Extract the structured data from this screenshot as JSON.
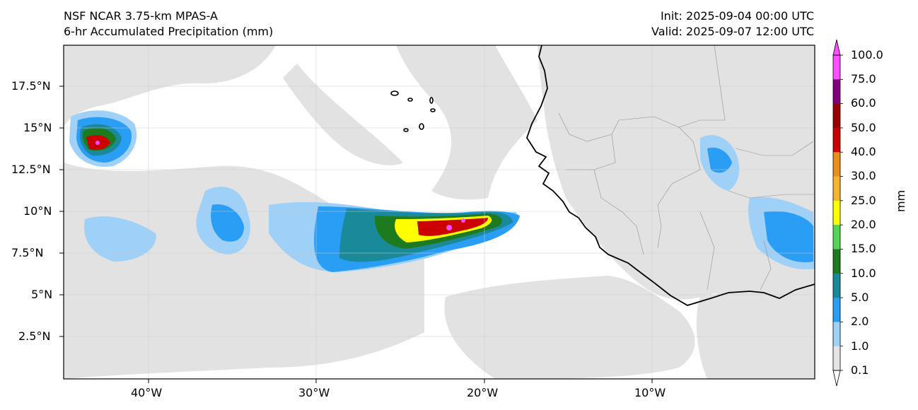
{
  "header": {
    "title_line1": "NSF NCAR 3.75-km MPAS-A",
    "title_line2": "6-hr Accumulated Precipitation (mm)",
    "init": "Init: 2025-09-04 00:00 UTC",
    "valid": "Valid: 2025-09-07 12:00 UTC"
  },
  "axes": {
    "lat_ticks": [
      "17.5°N",
      "15°N",
      "12.5°N",
      "10°N",
      "7.5°N",
      "5°N",
      "2.5°N"
    ],
    "lon_ticks": [
      "40°W",
      "30°W",
      "20°W",
      "10°W"
    ]
  },
  "colorbar": {
    "unit": "mm",
    "labels": [
      "100.0",
      "75.0",
      "60.0",
      "50.0",
      "40.0",
      "30.0",
      "25.0",
      "20.0",
      "15.0",
      "10.0",
      "5.0",
      "2.0",
      "1.0",
      "0.1"
    ],
    "colors": [
      "#ff4dff",
      "#800080",
      "#990000",
      "#cc0000",
      "#e8901e",
      "#f4b430",
      "#ffff00",
      "#55d455",
      "#1e7a1e",
      "#1a8a9a",
      "#2a9df4",
      "#9fd0f8",
      "#e4e4e4"
    ]
  },
  "colors": {
    "land": "#e0e0e0",
    "coast": "#000000",
    "border": "#909090"
  }
}
